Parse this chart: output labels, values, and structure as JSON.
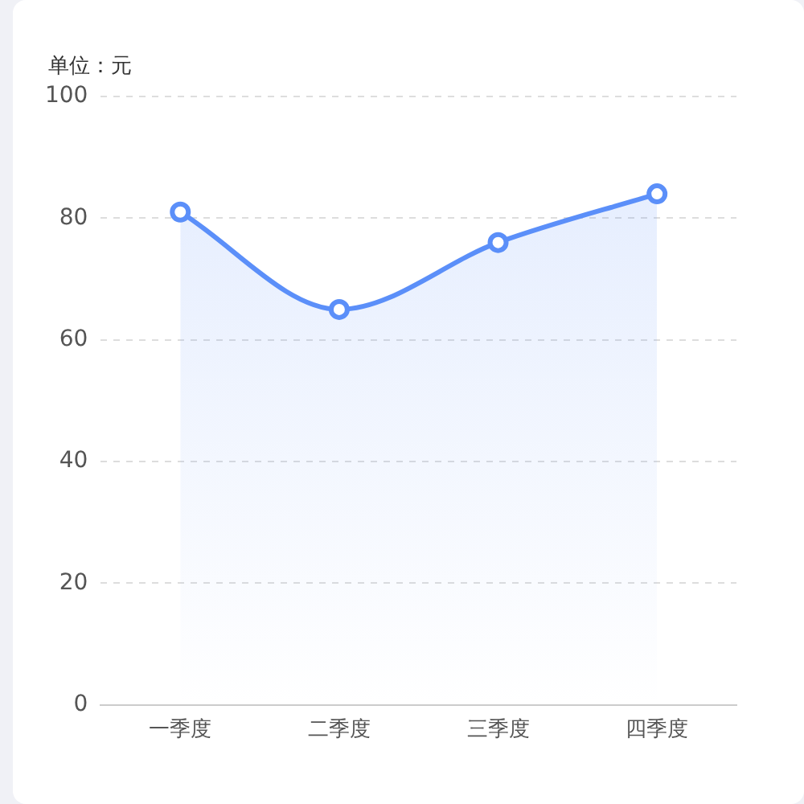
{
  "chart_data": {
    "type": "area",
    "ylabel": "单位：元",
    "categories": [
      "一季度",
      "二季度",
      "三季度",
      "四季度"
    ],
    "series": [
      {
        "color": "#5b8ff9",
        "values": [
          81,
          65,
          76,
          84
        ]
      }
    ],
    "ylim": [
      0,
      100
    ],
    "yticks": [
      0,
      20,
      40,
      60,
      80,
      100
    ],
    "grid": "y",
    "legend": false,
    "marker": "circle",
    "line_style": "solid"
  }
}
